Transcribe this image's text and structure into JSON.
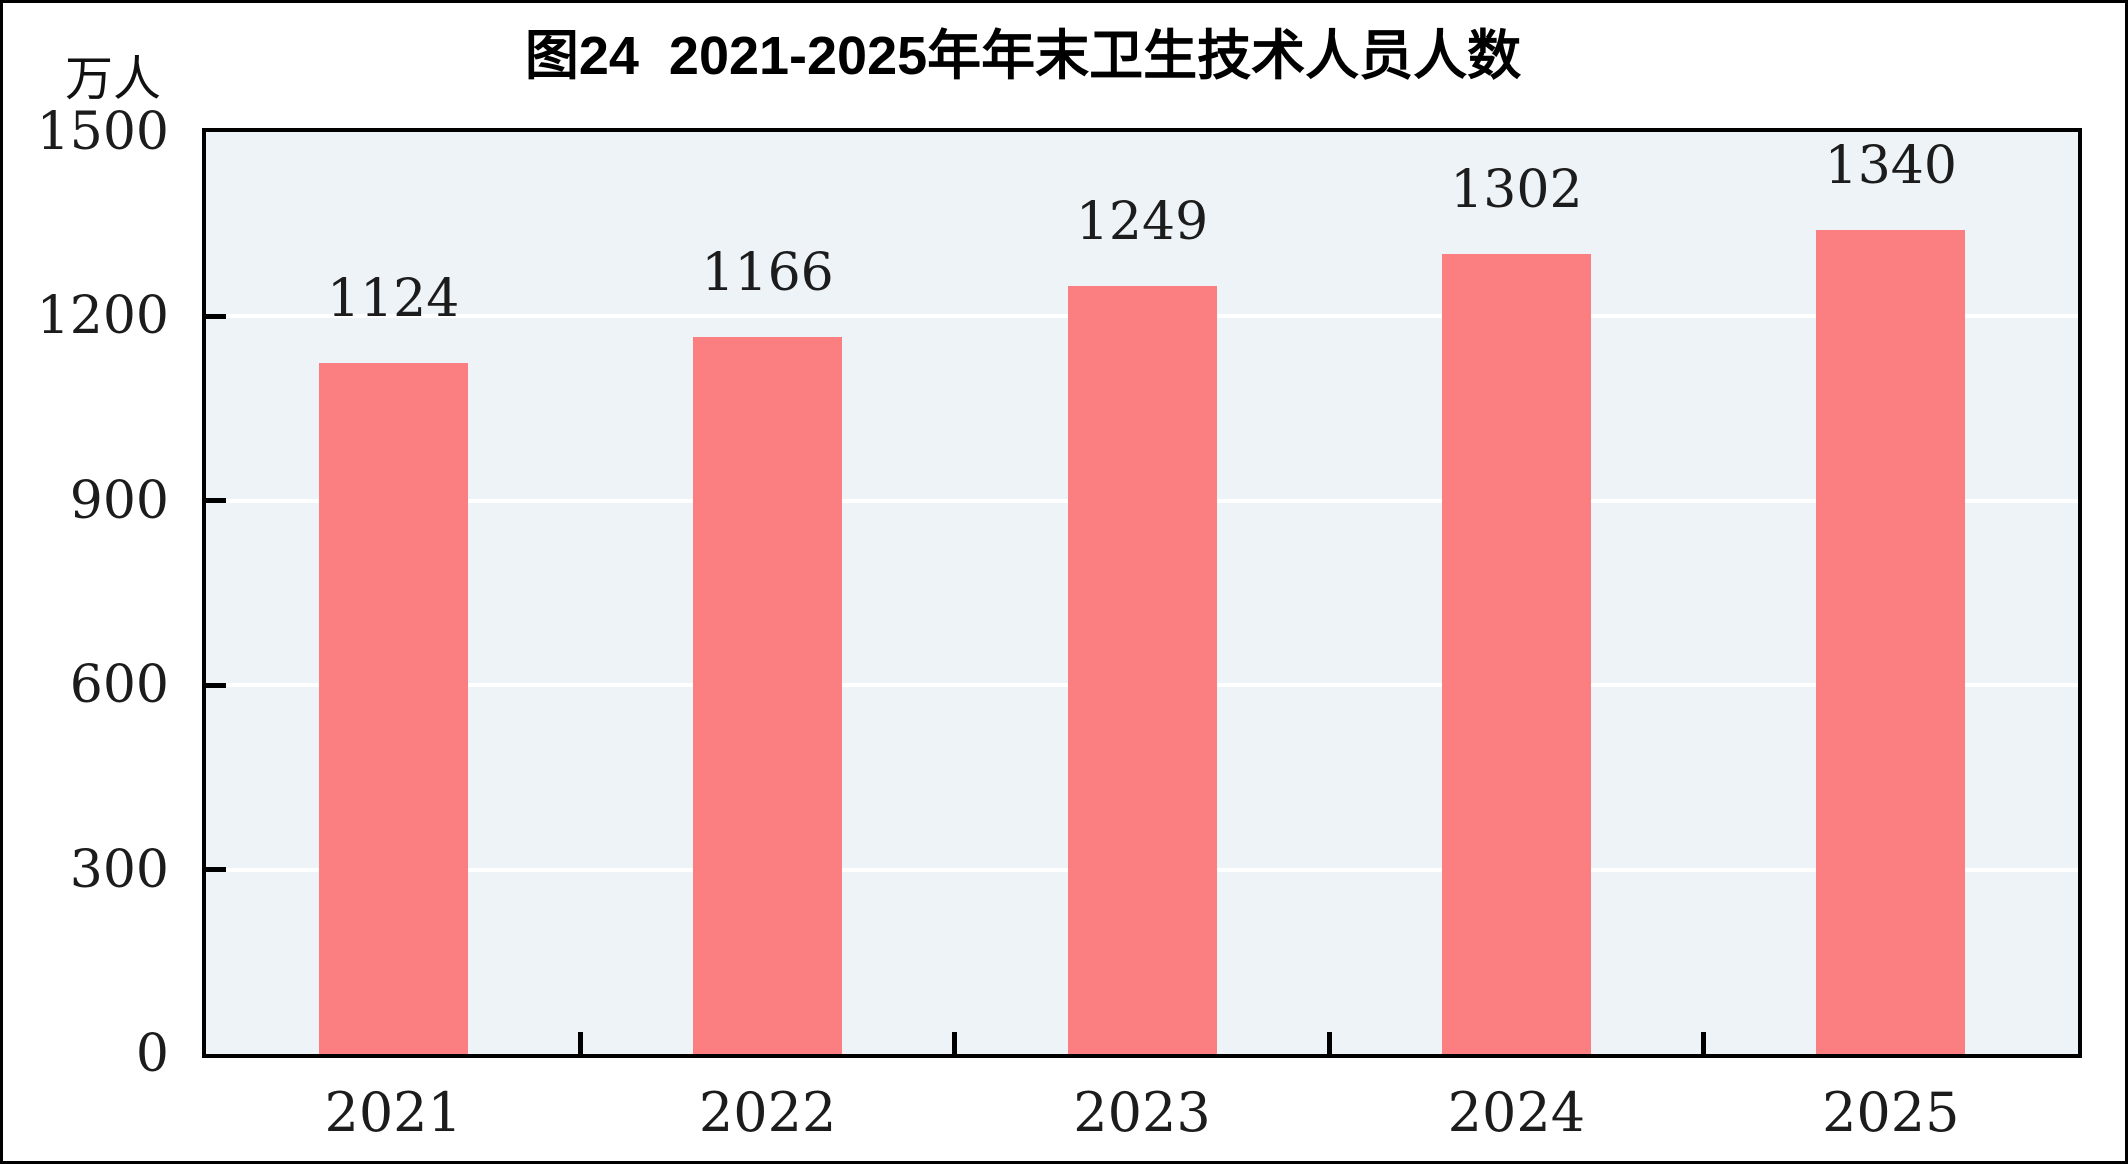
{
  "page": {
    "background": "#ffffff",
    "frame_color": "#000000"
  },
  "chart_data": {
    "type": "bar",
    "title": "图24  2021-2025年年末卫生技术人员人数",
    "unit_label": "万人",
    "ylabel": "万人",
    "xlabel": "",
    "categories": [
      "2021",
      "2022",
      "2023",
      "2024",
      "2025"
    ],
    "values": [
      1124,
      1166,
      1249,
      1302,
      1340
    ],
    "ylim": [
      0,
      1500
    ],
    "yticks": [
      0,
      300,
      600,
      900,
      1200,
      1500
    ],
    "grid": "horizontal",
    "legend_position": "none",
    "colors": {
      "bar": "#fb7e80",
      "plot_background": "#edf3f7",
      "gridline": "#ffffff",
      "axis": "#000000",
      "label_text": "#1c1c1c",
      "title_text": "#000000"
    }
  }
}
